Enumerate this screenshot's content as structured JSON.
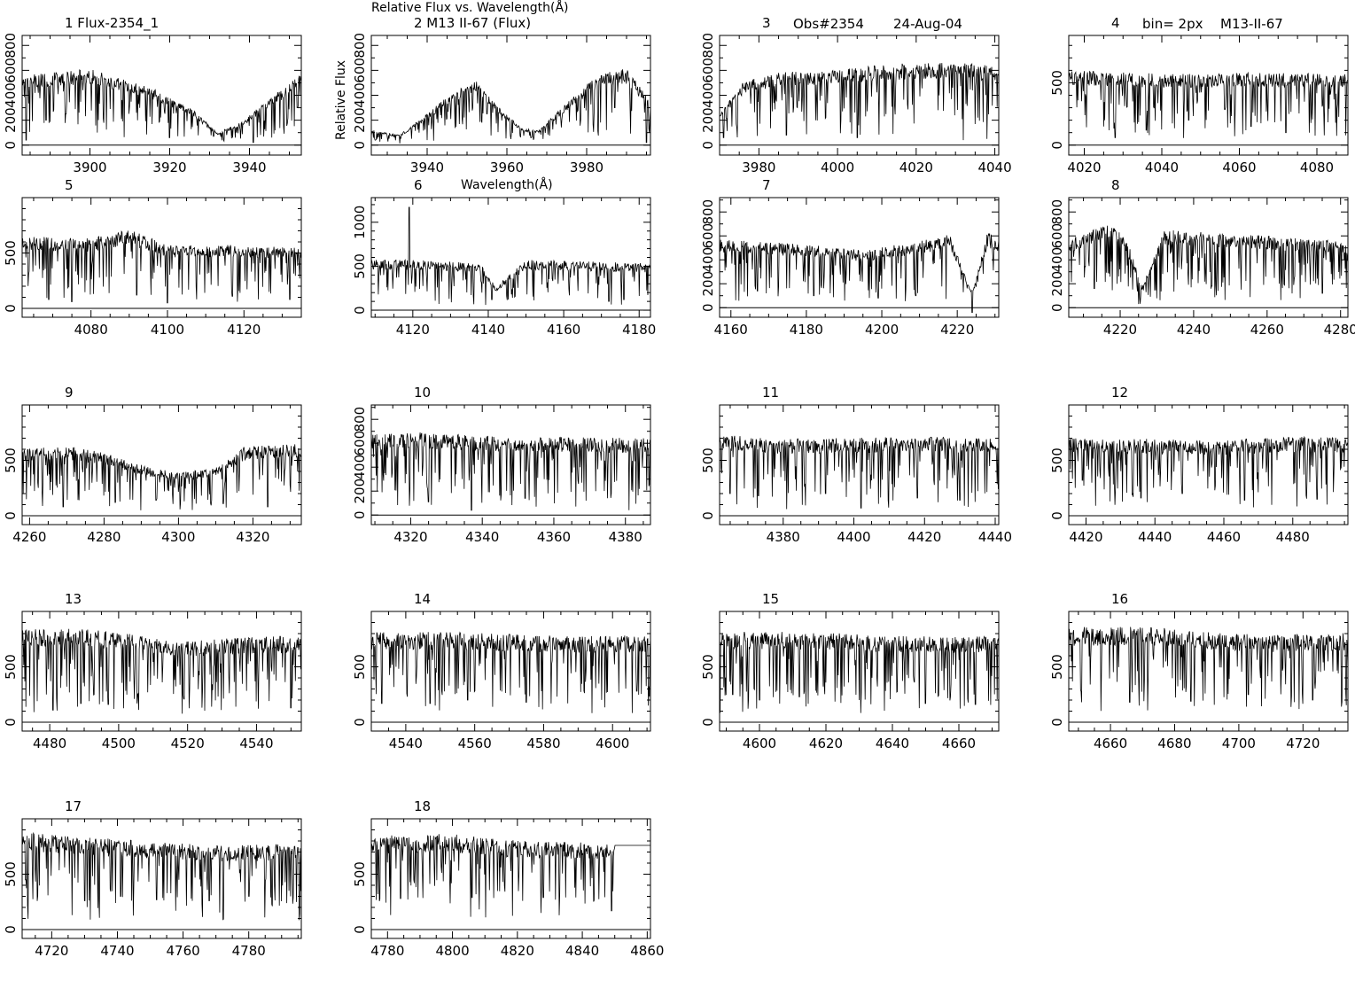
{
  "figure": {
    "title": "Relative Flux vs. Wavelength(Å)",
    "ylabel": "Relative Flux",
    "xlabel": "Wavelength(Å)",
    "header_obs": "Obs#2354",
    "header_date": "24-Aug-04",
    "header_bin": "bin= 2px",
    "header_star": "M13-II-67"
  },
  "chart_data": [
    {
      "type": "line",
      "title": "1  Flux-2354_1",
      "xlim": [
        3883,
        3953
      ],
      "ylim": [
        -80,
        880
      ],
      "xticks": [
        3900,
        3920,
        3940
      ],
      "yticks": [
        0,
        200,
        400,
        600,
        800
      ],
      "ytick_labels": [
        "0",
        "200",
        "400",
        "600",
        "800"
      ],
      "profile": [
        [
          3883,
          550
        ],
        [
          3900,
          600
        ],
        [
          3915,
          460
        ],
        [
          3925,
          300
        ],
        [
          3932,
          100
        ],
        [
          3938,
          180
        ],
        [
          3945,
          370
        ],
        [
          3953,
          560
        ]
      ],
      "features": [
        [
          3884,
          40
        ],
        [
          3889,
          200
        ],
        [
          3894,
          250
        ],
        [
          3920,
          60
        ],
        [
          3931,
          70
        ],
        [
          3941,
          20
        ],
        [
          3952,
          300
        ]
      ]
    },
    {
      "type": "line",
      "title": "2  M13 II-67 (Flux)",
      "xlim": [
        3926,
        3996
      ],
      "ylim": [
        -80,
        880
      ],
      "xticks": [
        3940,
        3960,
        3980
      ],
      "yticks": [
        0,
        200,
        400,
        600,
        800
      ],
      "ytick_labels": [
        "0",
        "200",
        "400",
        "600",
        "800"
      ],
      "profile": [
        [
          3926,
          120
        ],
        [
          3933,
          80
        ],
        [
          3938,
          200
        ],
        [
          3945,
          380
        ],
        [
          3952,
          520
        ],
        [
          3958,
          300
        ],
        [
          3964,
          130
        ],
        [
          3968,
          120
        ],
        [
          3975,
          330
        ],
        [
          3983,
          570
        ],
        [
          3990,
          600
        ],
        [
          3996,
          350
        ]
      ],
      "features": [
        [
          3927,
          40
        ],
        [
          3940,
          40
        ],
        [
          3955,
          250
        ],
        [
          3966,
          60
        ],
        [
          3987,
          300
        ],
        [
          3995,
          20
        ]
      ]
    },
    {
      "type": "line",
      "title": "3",
      "xlim": [
        3970,
        4041
      ],
      "ylim": [
        -80,
        880
      ],
      "xticks": [
        3980,
        4000,
        4020,
        4040
      ],
      "yticks": [
        0,
        200,
        400,
        600,
        800
      ],
      "ytick_labels": [
        "0",
        "200",
        "400",
        "600",
        "800"
      ],
      "profile": [
        [
          3970,
          250
        ],
        [
          3976,
          500
        ],
        [
          3985,
          570
        ],
        [
          4000,
          600
        ],
        [
          4015,
          640
        ],
        [
          4030,
          650
        ],
        [
          4041,
          620
        ]
      ],
      "features": [
        [
          3971,
          60
        ],
        [
          3987,
          80
        ],
        [
          4005,
          60
        ],
        [
          4032,
          40
        ],
        [
          4038,
          50
        ]
      ]
    },
    {
      "type": "line",
      "title": "4",
      "xlim": [
        4016,
        4088
      ],
      "ylim": [
        -80,
        880
      ],
      "xticks": [
        4020,
        4040,
        4060,
        4080
      ],
      "yticks": [
        0,
        500
      ],
      "ytick_labels": [
        "0",
        "500"
      ],
      "profile": [
        [
          4016,
          590
        ],
        [
          4040,
          560
        ],
        [
          4060,
          570
        ],
        [
          4088,
          560
        ]
      ],
      "features": [
        [
          4025,
          150
        ],
        [
          4028,
          60
        ],
        [
          4036,
          120
        ],
        [
          4047,
          200
        ],
        [
          4063,
          150
        ],
        [
          4072,
          100
        ]
      ]
    },
    {
      "type": "line",
      "title": "5",
      "xlim": [
        4062,
        4135
      ],
      "ylim": [
        -80,
        1000
      ],
      "xticks": [
        4080,
        4100,
        4120
      ],
      "yticks": [
        0,
        500
      ],
      "ytick_labels": [
        "0",
        "500"
      ],
      "profile": [
        [
          4062,
          640
        ],
        [
          4080,
          620
        ],
        [
          4090,
          700
        ],
        [
          4100,
          560
        ],
        [
          4120,
          560
        ],
        [
          4135,
          540
        ]
      ],
      "features": [
        [
          4069,
          80
        ],
        [
          4075,
          60
        ],
        [
          4092,
          120
        ],
        [
          4100,
          50
        ],
        [
          4117,
          110
        ],
        [
          4132,
          80
        ]
      ]
    },
    {
      "type": "line",
      "title": "6",
      "xlim": [
        4109,
        4183
      ],
      "ylim": [
        -80,
        1280
      ],
      "xticks": [
        4120,
        4140,
        4160,
        4180
      ],
      "yticks": [
        0,
        500,
        1000
      ],
      "ytick_labels": [
        "0",
        "500",
        "1000"
      ],
      "profile": [
        [
          4109,
          560
        ],
        [
          4125,
          560
        ],
        [
          4138,
          520
        ],
        [
          4142,
          260
        ],
        [
          4150,
          560
        ],
        [
          4170,
          540
        ],
        [
          4183,
          520
        ]
      ],
      "features": [
        [
          4119,
          1170
        ],
        [
          4141,
          120
        ],
        [
          4147,
          150
        ],
        [
          4172,
          100
        ],
        [
          4176,
          120
        ]
      ]
    },
    {
      "type": "line",
      "title": "7",
      "xlim": [
        4157,
        4231
      ],
      "ylim": [
        -80,
        920
      ],
      "xticks": [
        4160,
        4180,
        4200,
        4220
      ],
      "yticks": [
        0,
        200,
        400,
        600,
        800
      ],
      "ytick_labels": [
        "0",
        "200",
        "400",
        "600",
        "800"
      ],
      "profile": [
        [
          4157,
          560
        ],
        [
          4180,
          520
        ],
        [
          4195,
          470
        ],
        [
          4210,
          550
        ],
        [
          4218,
          600
        ],
        [
          4224,
          120
        ],
        [
          4228,
          620
        ],
        [
          4231,
          560
        ]
      ],
      "features": [
        [
          4167,
          140
        ],
        [
          4182,
          100
        ],
        [
          4199,
          80
        ],
        [
          4209,
          100
        ],
        [
          4224,
          -40
        ]
      ]
    },
    {
      "type": "line",
      "title": "8",
      "xlim": [
        4206,
        4282
      ],
      "ylim": [
        -80,
        920
      ],
      "xticks": [
        4220,
        4240,
        4260,
        4280
      ],
      "yticks": [
        0,
        200,
        400,
        600,
        800
      ],
      "ytick_labels": [
        "0",
        "200",
        "400",
        "600",
        "800"
      ],
      "profile": [
        [
          4206,
          560
        ],
        [
          4218,
          700
        ],
        [
          4222,
          540
        ],
        [
          4226,
          170
        ],
        [
          4232,
          640
        ],
        [
          4260,
          590
        ],
        [
          4282,
          540
        ]
      ],
      "features": [
        [
          4213,
          160
        ],
        [
          4225,
          30
        ],
        [
          4245,
          180
        ],
        [
          4269,
          80
        ],
        [
          4275,
          120
        ]
      ]
    },
    {
      "type": "line",
      "title": "9",
      "xlim": [
        4258,
        4333
      ],
      "ylim": [
        -80,
        1000
      ],
      "xticks": [
        4260,
        4280,
        4300,
        4320
      ],
      "yticks": [
        0,
        500
      ],
      "ytick_labels": [
        "0",
        "500"
      ],
      "profile": [
        [
          4258,
          600
        ],
        [
          4270,
          620
        ],
        [
          4280,
          560
        ],
        [
          4292,
          430
        ],
        [
          4300,
          380
        ],
        [
          4310,
          430
        ],
        [
          4318,
          620
        ],
        [
          4333,
          640
        ]
      ],
      "features": [
        [
          4269,
          80
        ],
        [
          4283,
          120
        ],
        [
          4294,
          140
        ],
        [
          4312,
          110
        ],
        [
          4324,
          80
        ]
      ]
    },
    {
      "type": "line",
      "title": "10",
      "xlim": [
        4309,
        4387
      ],
      "ylim": [
        -80,
        920
      ],
      "xticks": [
        4320,
        4340,
        4360,
        4380
      ],
      "yticks": [
        0,
        200,
        400,
        600,
        800
      ],
      "ytick_labels": [
        "0",
        "200",
        "400",
        "600",
        "800"
      ],
      "profile": [
        [
          4309,
          660
        ],
        [
          4320,
          680
        ],
        [
          4340,
          650
        ],
        [
          4360,
          640
        ],
        [
          4387,
          630
        ]
      ],
      "features": [
        [
          4312,
          190
        ],
        [
          4325,
          110
        ],
        [
          4337,
          40
        ],
        [
          4352,
          140
        ],
        [
          4369,
          120
        ],
        [
          4381,
          40
        ]
      ]
    },
    {
      "type": "line",
      "title": "11",
      "xlim": [
        4362,
        4441
      ],
      "ylim": [
        -80,
        1000
      ],
      "xticks": [
        4380,
        4400,
        4420,
        4440
      ],
      "yticks": [
        0,
        500
      ],
      "ytick_labels": [
        "0",
        "500"
      ],
      "profile": [
        [
          4362,
          720
        ],
        [
          4380,
          680
        ],
        [
          4400,
          690
        ],
        [
          4420,
          700
        ],
        [
          4441,
          680
        ]
      ],
      "features": [
        [
          4365,
          200
        ],
        [
          4373,
          180
        ],
        [
          4381,
          60
        ],
        [
          4392,
          200
        ],
        [
          4402,
          70
        ],
        [
          4418,
          160
        ],
        [
          4430,
          140
        ]
      ]
    },
    {
      "type": "line",
      "title": "12",
      "xlim": [
        4415,
        4496
      ],
      "ylim": [
        -80,
        1000
      ],
      "xticks": [
        4420,
        4440,
        4460,
        4480
      ],
      "yticks": [
        0,
        500
      ],
      "ytick_labels": [
        "0",
        "500"
      ],
      "profile": [
        [
          4415,
          690
        ],
        [
          4440,
          680
        ],
        [
          4460,
          670
        ],
        [
          4480,
          700
        ],
        [
          4496,
          690
        ]
      ],
      "features": [
        [
          4419,
          320
        ],
        [
          4427,
          130
        ],
        [
          4436,
          160
        ],
        [
          4448,
          200
        ],
        [
          4466,
          140
        ],
        [
          4487,
          150
        ]
      ]
    },
    {
      "type": "line",
      "title": "13",
      "xlim": [
        4472,
        4553
      ],
      "ylim": [
        -80,
        1000
      ],
      "xticks": [
        4480,
        4500,
        4520,
        4540
      ],
      "yticks": [
        0,
        500
      ],
      "ytick_labels": [
        "0",
        "500"
      ],
      "profile": [
        [
          4472,
          830
        ],
        [
          4490,
          830
        ],
        [
          4505,
          780
        ],
        [
          4520,
          720
        ],
        [
          4540,
          760
        ],
        [
          4553,
          760
        ]
      ],
      "features": [
        [
          4481,
          110
        ],
        [
          4489,
          170
        ],
        [
          4497,
          160
        ],
        [
          4519,
          210
        ],
        [
          4527,
          140
        ],
        [
          4534,
          140
        ],
        [
          4550,
          130
        ]
      ]
    },
    {
      "type": "line",
      "title": "14",
      "xlim": [
        4530,
        4611
      ],
      "ylim": [
        -80,
        1000
      ],
      "xticks": [
        4540,
        4560,
        4580,
        4600
      ],
      "yticks": [
        0,
        500
      ],
      "ytick_labels": [
        "0",
        "500"
      ],
      "profile": [
        [
          4530,
          800
        ],
        [
          4550,
          800
        ],
        [
          4570,
          780
        ],
        [
          4590,
          760
        ],
        [
          4611,
          770
        ]
      ],
      "features": [
        [
          4533,
          170
        ],
        [
          4547,
          170
        ],
        [
          4558,
          200
        ],
        [
          4575,
          180
        ],
        [
          4587,
          170
        ],
        [
          4607,
          280
        ]
      ]
    },
    {
      "type": "line",
      "title": "15",
      "xlim": [
        4588,
        4672
      ],
      "ylim": [
        -80,
        1000
      ],
      "xticks": [
        4600,
        4620,
        4640,
        4660
      ],
      "yticks": [
        0,
        500
      ],
      "ytick_labels": [
        "0",
        "500"
      ],
      "profile": [
        [
          4588,
          800
        ],
        [
          4610,
          800
        ],
        [
          4630,
          780
        ],
        [
          4650,
          760
        ],
        [
          4672,
          770
        ]
      ],
      "features": [
        [
          4592,
          250
        ],
        [
          4600,
          200
        ],
        [
          4612,
          230
        ],
        [
          4630,
          200
        ],
        [
          4650,
          170
        ],
        [
          4665,
          160
        ]
      ]
    },
    {
      "type": "line",
      "title": "16",
      "xlim": [
        4647,
        4734
      ],
      "ylim": [
        -80,
        1000
      ],
      "xticks": [
        4660,
        4680,
        4700,
        4720
      ],
      "yticks": [
        0,
        500
      ],
      "ytick_labels": [
        "0",
        "500"
      ],
      "profile": [
        [
          4647,
          840
        ],
        [
          4670,
          850
        ],
        [
          4690,
          800
        ],
        [
          4710,
          770
        ],
        [
          4734,
          790
        ]
      ],
      "features": [
        [
          4651,
          180
        ],
        [
          4666,
          180
        ],
        [
          4685,
          190
        ],
        [
          4703,
          250
        ],
        [
          4723,
          200
        ],
        [
          4732,
          140
        ]
      ]
    },
    {
      "type": "line",
      "title": "17",
      "xlim": [
        4711,
        4796
      ],
      "ylim": [
        -80,
        1000
      ],
      "xticks": [
        4720,
        4740,
        4760,
        4780
      ],
      "yticks": [
        0,
        500
      ],
      "ytick_labels": [
        "0",
        "500"
      ],
      "profile": [
        [
          4711,
          860
        ],
        [
          4730,
          820
        ],
        [
          4750,
          780
        ],
        [
          4770,
          750
        ],
        [
          4796,
          760
        ]
      ],
      "features": [
        [
          4712,
          450
        ],
        [
          4730,
          260
        ],
        [
          4741,
          300
        ],
        [
          4752,
          270
        ],
        [
          4768,
          260
        ],
        [
          4780,
          300
        ]
      ]
    },
    {
      "type": "line",
      "title": "18",
      "xlim": [
        4775,
        4861
      ],
      "ylim": [
        -80,
        1000
      ],
      "xticks": [
        4780,
        4800,
        4820,
        4840,
        4860
      ],
      "yticks": [
        0,
        500
      ],
      "ytick_labels": [
        "0",
        "500"
      ],
      "profile": [
        [
          4775,
          830
        ],
        [
          4800,
          850
        ],
        [
          4820,
          790
        ],
        [
          4840,
          770
        ],
        [
          4850,
          780
        ]
      ],
      "features": [
        [
          4777,
          320
        ],
        [
          4784,
          280
        ],
        [
          4806,
          290
        ],
        [
          4828,
          290
        ],
        [
          4838,
          290
        ],
        [
          4849,
          170
        ]
      ],
      "flat_after": 4850,
      "flat_value": 760
    }
  ]
}
